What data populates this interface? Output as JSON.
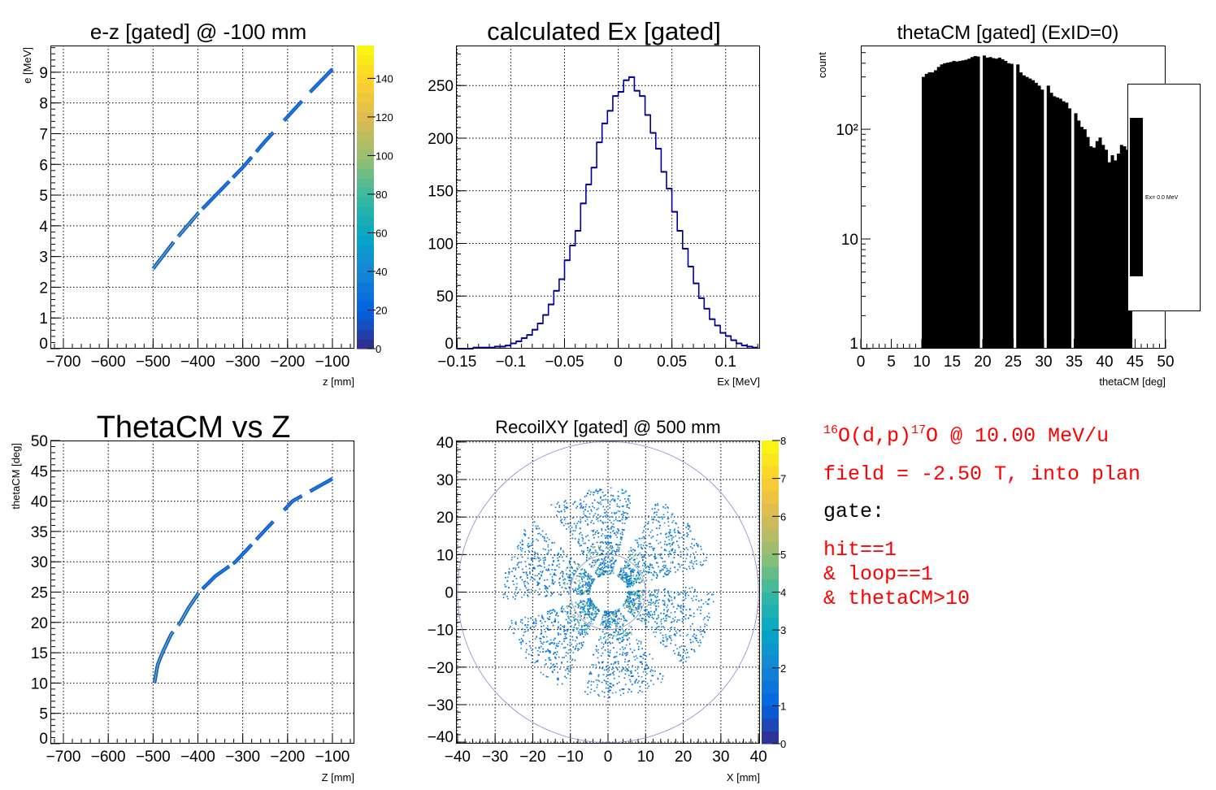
{
  "colors": {
    "frame": "#000000",
    "hist_line": "#000099",
    "hist_fill": "#000000",
    "circle": "#8a88c8",
    "text_red": "#ff0000",
    "text_black": "#000000",
    "palette": [
      "#352a87",
      "#0363e1",
      "#1485d4",
      "#06a7c6",
      "#38b99e",
      "#92bf73",
      "#d9ba56",
      "#fcce2e",
      "#f9fb0e"
    ]
  },
  "chart_data": [
    {
      "type": "heatmap",
      "title": "e-z [gated] @  -100 mm",
      "xlabel": "z [mm]",
      "ylabel": "e [MeV]",
      "xlim": [
        -729,
        -51
      ],
      "ylim": [
        0,
        9.87
      ],
      "grid": true,
      "xticks": [
        -700,
        -600,
        -500,
        -400,
        -300,
        -200,
        -100
      ],
      "xtick_labels": [
        "−700",
        "−600",
        "−500",
        "−400",
        "−300",
        "−200",
        "−100"
      ],
      "yticks": [
        0,
        1,
        2,
        3,
        4,
        5,
        6,
        7,
        8,
        9
      ],
      "ytick_labels": [
        "0",
        "1",
        "2",
        "3",
        "4",
        "5",
        "6",
        "7",
        "8",
        "9"
      ],
      "colorbar": {
        "range": [
          0,
          157
        ],
        "ticks": [
          0,
          20,
          40,
          60,
          80,
          100,
          120,
          140
        ],
        "tick_labels": [
          "0",
          "20",
          "40",
          "60",
          "80",
          "100",
          "120",
          "140"
        ]
      },
      "locus_points": [
        [
          -500,
          2.6
        ],
        [
          -450,
          3.55
        ],
        [
          -400,
          4.4
        ],
        [
          -350,
          5.15
        ],
        [
          -300,
          5.9
        ],
        [
          -250,
          6.75
        ],
        [
          -200,
          7.55
        ],
        [
          -150,
          8.35
        ],
        [
          -100,
          9.1
        ]
      ],
      "locus_segments_z": [
        [
          -500,
          -454
        ],
        [
          -444,
          -398
        ],
        [
          -390,
          -330
        ],
        [
          -322,
          -280
        ],
        [
          -270,
          -232
        ],
        [
          -208,
          -168
        ],
        [
          -150,
          -100
        ]
      ]
    },
    {
      "type": "bar",
      "title": "calculated Ex [gated]",
      "xlabel": "Ex [MeV]",
      "xlim": [
        -0.151,
        0.132
      ],
      "ylim": [
        0,
        288
      ],
      "grid": true,
      "xticks": [
        -0.15,
        -0.1,
        -0.05,
        0,
        0.05,
        0.1
      ],
      "xtick_labels": [
        "−0.15",
        "−0.1",
        "−0.05",
        "0",
        "0.05",
        "0.1"
      ],
      "yticks": [
        0,
        50,
        100,
        150,
        200,
        250
      ],
      "ytick_labels": [
        "0",
        "50",
        "100",
        "150",
        "200",
        "250"
      ],
      "bin_width": 0.005,
      "bins": [
        -0.15,
        -0.145,
        -0.14,
        -0.135,
        -0.13,
        -0.125,
        -0.12,
        -0.115,
        -0.11,
        -0.105,
        -0.1,
        -0.095,
        -0.09,
        -0.085,
        -0.08,
        -0.075,
        -0.07,
        -0.065,
        -0.06,
        -0.055,
        -0.05,
        -0.045,
        -0.04,
        -0.035,
        -0.03,
        -0.025,
        -0.02,
        -0.015,
        -0.01,
        -0.005,
        0.0,
        0.005,
        0.01,
        0.015,
        0.02,
        0.025,
        0.03,
        0.035,
        0.04,
        0.045,
        0.05,
        0.055,
        0.06,
        0.065,
        0.07,
        0.075,
        0.08,
        0.085,
        0.09,
        0.095,
        0.1,
        0.105,
        0.11,
        0.115,
        0.12,
        0.125
      ],
      "values": [
        0,
        0,
        0,
        1,
        1,
        1,
        1,
        2,
        2,
        3,
        5,
        7,
        10,
        13,
        18,
        24,
        32,
        42,
        55,
        66,
        84,
        98,
        112,
        138,
        156,
        172,
        196,
        214,
        226,
        240,
        244,
        255,
        258,
        245,
        240,
        222,
        205,
        190,
        168,
        152,
        130,
        112,
        95,
        78,
        62,
        48,
        38,
        28,
        22,
        15,
        12,
        8,
        5,
        3,
        2,
        1
      ]
    },
    {
      "type": "bar",
      "title": "thetaCM [gated] (ExID=0)",
      "xlabel": "thetaCM [deg]",
      "ylabel": "count",
      "ylog": true,
      "xlim": [
        0,
        50
      ],
      "ylim": [
        1,
        580
      ],
      "grid": false,
      "xticks": [
        0,
        5,
        10,
        15,
        20,
        25,
        30,
        35,
        40,
        45,
        50
      ],
      "xtick_labels": [
        "0",
        "5",
        "10",
        "15",
        "20",
        "25",
        "30",
        "35",
        "40",
        "45",
        "50"
      ],
      "yticks": [
        1,
        10,
        100
      ],
      "ytick_labels": [
        "1",
        "10",
        "10²"
      ],
      "bin_width": 0.5,
      "bins": [
        10,
        10.5,
        11,
        11.5,
        12,
        12.5,
        13,
        13.5,
        14,
        14.5,
        15,
        15.5,
        16,
        16.5,
        17,
        17.5,
        18,
        18.5,
        19,
        19.5,
        20,
        20.5,
        21,
        21.5,
        22,
        22.5,
        23,
        23.5,
        24,
        24.5,
        25,
        25.5,
        26,
        26.5,
        27,
        27.5,
        28,
        28.5,
        29,
        29.5,
        30,
        30.5,
        31,
        31.5,
        32,
        32.5,
        33,
        33.5,
        34,
        34.5,
        35,
        35.5,
        36,
        36.5,
        37,
        37.5,
        38,
        38.5,
        39,
        39.5,
        40,
        40.5,
        41,
        41.5,
        42,
        42.5,
        43,
        43.5,
        44
      ],
      "values": [
        300,
        320,
        330,
        330,
        345,
        370,
        390,
        400,
        405,
        410,
        420,
        415,
        420,
        425,
        430,
        440,
        455,
        465,
        460,
        0,
        470,
        450,
        455,
        445,
        440,
        450,
        435,
        420,
        400,
        395,
        0,
        390,
        330,
        310,
        300,
        290,
        280,
        265,
        250,
        230,
        0,
        250,
        215,
        200,
        195,
        190,
        180,
        175,
        155,
        0,
        140,
        120,
        105,
        100,
        85,
        70,
        68,
        78,
        84,
        72,
        65,
        50,
        58,
        52,
        60,
        72,
        70,
        65,
        60
      ],
      "legend": {
        "placement": "right",
        "entries": [
          "Ex=  0.0 MeV"
        ]
      }
    },
    {
      "type": "scatter",
      "title": "ThetaCM vs Z",
      "xlabel": "Z [mm]",
      "ylabel": "thetaCM [deg]",
      "xlim": [
        -729,
        -51
      ],
      "ylim": [
        0,
        50
      ],
      "grid": true,
      "xticks": [
        -700,
        -600,
        -500,
        -400,
        -300,
        -200,
        -100
      ],
      "xtick_labels": [
        "−700",
        "−600",
        "−500",
        "−400",
        "−300",
        "−200",
        "−100"
      ],
      "yticks": [
        0,
        5,
        10,
        15,
        20,
        25,
        30,
        35,
        40,
        45,
        50
      ],
      "ytick_labels": [
        "0",
        "5",
        "10",
        "15",
        "20",
        "25",
        "30",
        "35",
        "40",
        "45",
        "50"
      ],
      "locus_points": [
        [
          -497,
          10
        ],
        [
          -490,
          13
        ],
        [
          -479,
          15
        ],
        [
          -460,
          18
        ],
        [
          -439,
          20
        ],
        [
          -420,
          22.5
        ],
        [
          -397,
          25
        ],
        [
          -360,
          27.7
        ],
        [
          -316,
          30
        ],
        [
          -253,
          35
        ],
        [
          -189,
          40
        ],
        [
          -100,
          43.7
        ]
      ],
      "locus_segments_z": [
        [
          -497,
          -454
        ],
        [
          -444,
          -398
        ],
        [
          -390,
          -330
        ],
        [
          -322,
          -280
        ],
        [
          -270,
          -232
        ],
        [
          -208,
          -168
        ],
        [
          -150,
          -100
        ]
      ]
    },
    {
      "type": "heatmap",
      "title": "RecoilXY [gated] @  500 mm",
      "xlabel": "X [mm]",
      "xlim": [
        -40.4,
        40.4
      ],
      "ylim": [
        -40.4,
        40.4
      ],
      "grid": true,
      "xticks": [
        -40,
        -30,
        -20,
        -10,
        0,
        10,
        20,
        30,
        40
      ],
      "xtick_labels": [
        "−40",
        "−30",
        "−20",
        "−10",
        "0",
        "10",
        "20",
        "30",
        "40"
      ],
      "yticks": [
        -40,
        -30,
        -20,
        -10,
        0,
        10,
        20,
        30,
        40
      ],
      "ytick_labels": [
        "−40",
        "−30",
        "−20",
        "−10",
        "0",
        "10",
        "20",
        "30",
        "40"
      ],
      "colorbar": {
        "range": [
          0,
          8
        ],
        "ticks": [
          0,
          1,
          2,
          3,
          4,
          5,
          6,
          7,
          8
        ],
        "tick_labels": [
          "0",
          "1",
          "2",
          "3",
          "4",
          "5",
          "6",
          "7",
          "8"
        ]
      },
      "circle_radii_mm": [
        40,
        10
      ],
      "sector_center_angles_deg": [
        100,
        40,
        -20,
        -80,
        -140,
        160
      ],
      "sector_half_width_deg": 24,
      "radius_range_mm": [
        5,
        28
      ],
      "ring_gaps_mm": [
        [
          9.6,
          10.3
        ],
        [
          13.8,
          14.5
        ],
        [
          17.7,
          18.3
        ]
      ]
    }
  ],
  "text_panel": {
    "reaction_a_mass": "16",
    "reaction_mid": "O(d,p)",
    "reaction_b_mass": "17",
    "reaction_end": "O @ 10.00 MeV/u",
    "field": "field = -2.50 T, into plan",
    "gate_label": "gate:",
    "conditions": [
      "hit==1",
      "& loop==1",
      "& thetaCM>10"
    ]
  }
}
